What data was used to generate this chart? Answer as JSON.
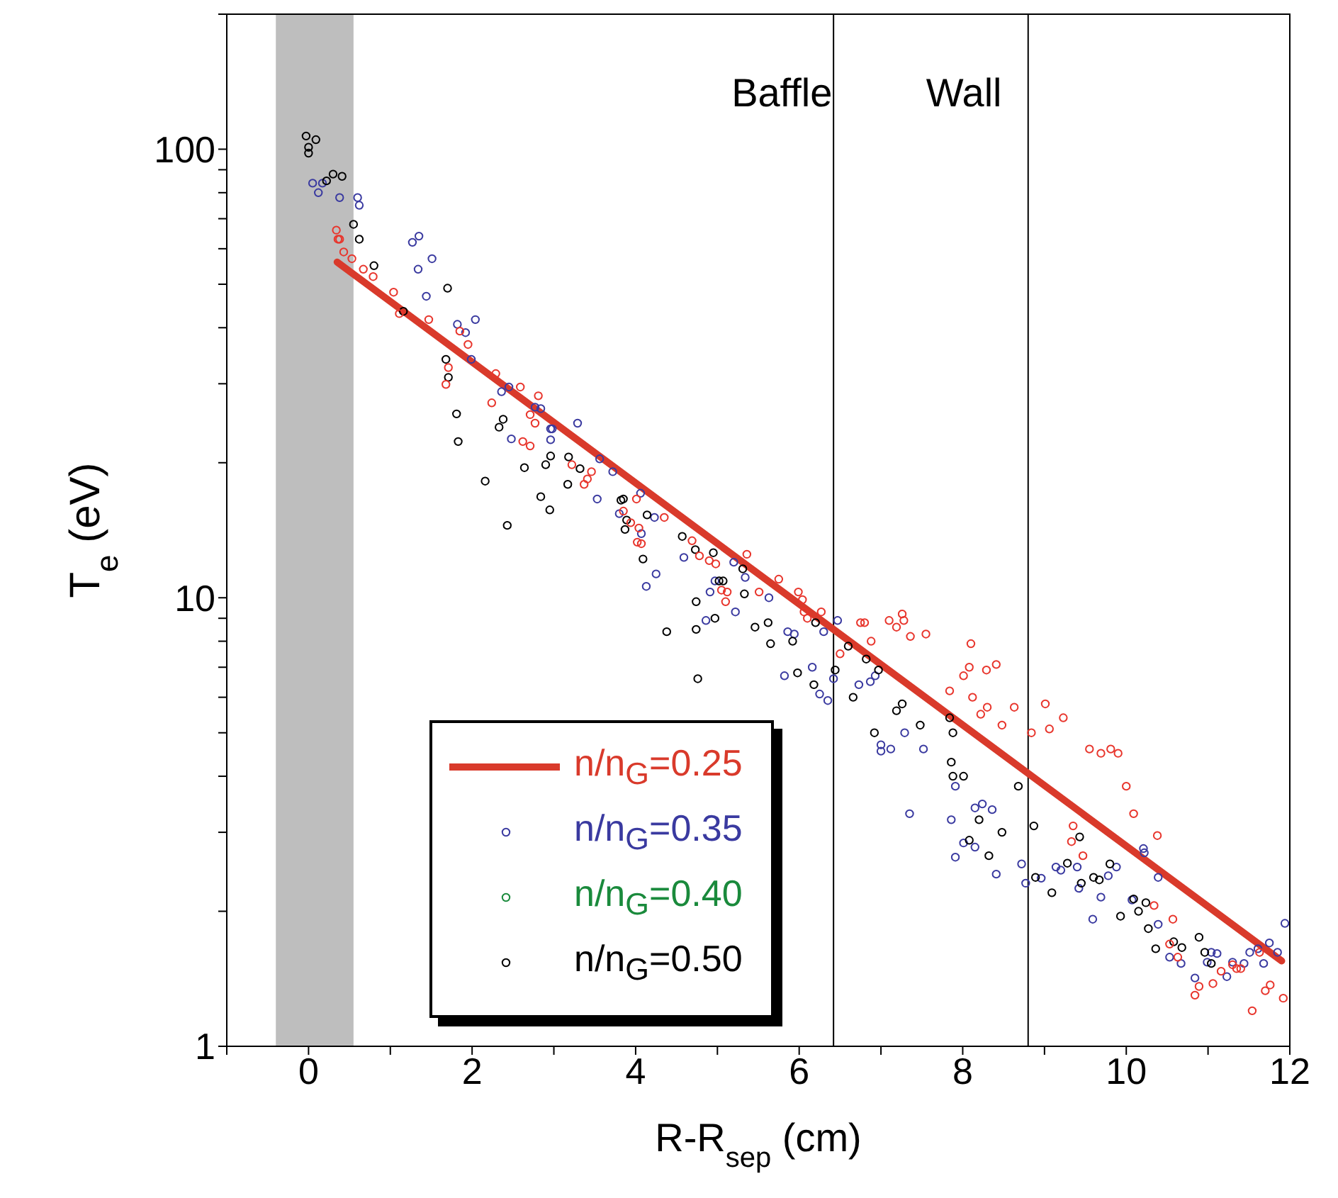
{
  "chart_data": {
    "type": "scatter",
    "xlabel": "R-R$_{sep}$ (cm)",
    "ylabel": "T$_{e}$ (eV)",
    "log": "y",
    "xlim": [
      -1,
      12
    ],
    "ylim": [
      1,
      200
    ],
    "xticks": [
      {
        "value": -1,
        "label": null
      },
      0,
      {
        "value": 1,
        "label": null
      },
      2,
      {
        "value": 3,
        "label": null
      },
      4,
      {
        "value": 5,
        "label": null
      },
      6,
      {
        "value": 7,
        "label": null
      },
      8,
      {
        "value": 9,
        "label": null
      },
      10,
      {
        "value": 11,
        "label": null
      },
      12
    ],
    "yticks": [
      1,
      {
        "value": 2,
        "label": null
      },
      {
        "value": 3,
        "label": null
      },
      {
        "value": 4,
        "label": null
      },
      {
        "value": 5,
        "label": null
      },
      {
        "value": 6,
        "label": null
      },
      {
        "value": 7,
        "label": null
      },
      {
        "value": 8,
        "label": null
      },
      {
        "value": 9,
        "label": null
      },
      10,
      {
        "value": 20,
        "label": null
      },
      {
        "value": 30,
        "label": null
      },
      {
        "value": 40,
        "label": null
      },
      {
        "value": 50,
        "label": null
      },
      {
        "value": 60,
        "label": null
      },
      {
        "value": 70,
        "label": null
      },
      {
        "value": 80,
        "label": null
      },
      {
        "value": 90,
        "label": null
      },
      100,
      {
        "value": 200,
        "label": null
      }
    ],
    "legend": "bottom left",
    "marker": "circle",
    "bands": [
      {
        "axis": "x",
        "from": -0.4,
        "to": 0.55,
        "color": "#bebebe"
      }
    ],
    "ref_lines": [
      {
        "axis": "x",
        "value": 6.42,
        "label": "Baffle",
        "color": "#000000"
      },
      {
        "axis": "x",
        "value": 8.8,
        "label": "Wall",
        "color": "#000000"
      }
    ],
    "series": [
      {
        "name": "n/n$_{G}$=0.25",
        "type": "line",
        "marker": "none",
        "color": "#d93a2b",
        "x": [
          0.35,
          11.9
        ],
        "values": [
          56,
          1.55
        ]
      },
      {
        "name": "n/n$_{G}$=0.35",
        "color": "#3a3aa0",
        "x": [
          0.05,
          0.12,
          0.17,
          0.38,
          0.6,
          0.62,
          1.27,
          1.35,
          1.34,
          1.51,
          1.44,
          1.82,
          1.92,
          2.04,
          1.99,
          2.36,
          2.45,
          2.48,
          2.77,
          2.84,
          2.96,
          2.96,
          3.29,
          2.98,
          3.56,
          3.72,
          3.53,
          4.06,
          3.8,
          4.23,
          4.07,
          4.25,
          4.13,
          4.59,
          4.91,
          4.97,
          4.86,
          5.22,
          5.2,
          5.34,
          5.63,
          5.86,
          5.94,
          5.82,
          6.16,
          6.25,
          6.35,
          6.42,
          6.47,
          6.3,
          6.73,
          6.87,
          6.93,
          7.0,
          7.0,
          7.12,
          7.29,
          7.52,
          7.35,
          7.86,
          7.91,
          8.15,
          8.24,
          8.36,
          8.01,
          8.15,
          7.91,
          8.41,
          8.72,
          8.77,
          8.96,
          9.2,
          9.14,
          9.4,
          9.42,
          9.59,
          9.69,
          9.78,
          9.88,
          10.07,
          10.21,
          10.22,
          10.39,
          10.39,
          10.53,
          10.67,
          10.84,
          10.99,
          11.04,
          11.11,
          11.23,
          11.3,
          11.44,
          11.51,
          11.61,
          11.68,
          11.75,
          11.85,
          11.94
        ],
        "values": [
          84,
          80,
          84,
          78,
          78,
          75,
          62,
          64,
          54,
          57,
          47,
          40.7,
          39,
          41.7,
          34,
          28.8,
          29.5,
          22.6,
          26.6,
          26.4,
          23.8,
          22.5,
          24.5,
          23.8,
          20.4,
          19.1,
          16.6,
          17.1,
          15.4,
          15.1,
          13.9,
          11.3,
          10.6,
          12.3,
          10.3,
          10.9,
          8.9,
          9.3,
          12,
          11.1,
          10,
          8.4,
          8.3,
          6.7,
          7,
          6.1,
          5.9,
          6.6,
          8.9,
          8.4,
          6.4,
          6.5,
          6.7,
          4.7,
          4.55,
          4.6,
          5,
          4.6,
          3.3,
          3.2,
          3.8,
          3.4,
          3.47,
          3.37,
          2.84,
          2.78,
          2.64,
          2.42,
          2.55,
          2.31,
          2.37,
          2.47,
          2.51,
          2.51,
          2.25,
          1.92,
          2.15,
          2.4,
          2.51,
          2.12,
          2.76,
          2.7,
          2.38,
          1.87,
          1.58,
          1.53,
          1.42,
          1.54,
          1.62,
          1.61,
          1.43,
          1.54,
          1.53,
          1.62,
          1.65,
          1.53,
          1.7,
          1.62,
          1.88
        ]
      },
      {
        "name": "n/n$_{G}$=0.40",
        "color": "#1a8a3c"
      },
      {
        "name": "n/n$_{G}$=0.50",
        "color": "#000000",
        "x": [
          -0.03,
          0.09,
          0,
          0,
          0.3,
          0.41,
          0.22,
          0.55,
          0.62,
          0.8,
          1.16,
          1.7,
          1.68,
          1.71,
          1.81,
          1.83,
          2.16,
          2.43,
          2.38,
          2.33,
          2.64,
          2.84,
          2.95,
          2.96,
          2.9,
          3.18,
          3.32,
          3.17,
          3.82,
          3.85,
          3.89,
          3.87,
          4.14,
          4.09,
          4.38,
          4.57,
          4.73,
          4.95,
          5.02,
          5.07,
          4.74,
          4.74,
          4.97,
          4.76,
          5.31,
          5.33,
          5.46,
          5.62,
          5.65,
          5.92,
          5.98,
          6.2,
          6.18,
          6.44,
          6.6,
          6.82,
          6.97,
          6.66,
          7.19,
          7.26,
          6.92,
          7.48,
          7.84,
          7.88,
          7.86,
          7.88,
          8.01,
          8.2,
          8.08,
          8.32,
          8.48,
          8.68,
          8.87,
          8.89,
          9.09,
          9.43,
          9.45,
          9.28,
          9.6,
          9.67,
          9.8,
          9.93,
          10.09,
          10.15,
          10.24,
          10.27,
          10.36,
          10.58,
          10.68,
          10.89,
          10.96,
          11.04
        ],
        "values": [
          107,
          105,
          101,
          98,
          88,
          87,
          85,
          68,
          63,
          55,
          43.5,
          49,
          34,
          31,
          25.7,
          22.3,
          18.2,
          14.5,
          25,
          24,
          19.5,
          16.8,
          15.7,
          20.7,
          19.8,
          20.6,
          19.4,
          17.9,
          16.5,
          16.6,
          14.9,
          14.2,
          15.3,
          12.2,
          8.4,
          13.7,
          12.8,
          12.6,
          10.9,
          10.9,
          9.8,
          8.5,
          9,
          6.6,
          11.6,
          10.2,
          8.6,
          8.8,
          7.9,
          8,
          6.8,
          8.8,
          6.4,
          6.9,
          7.8,
          7.3,
          6.9,
          6,
          5.6,
          5.8,
          5,
          5.2,
          5.4,
          5,
          4.3,
          4,
          4,
          3.2,
          2.88,
          2.66,
          3,
          3.8,
          3.1,
          2.38,
          2.2,
          2.93,
          2.31,
          2.56,
          2.38,
          2.35,
          2.55,
          1.95,
          2.13,
          2,
          2.09,
          1.83,
          1.65,
          1.71,
          1.66,
          1.75,
          1.62,
          1.53
        ]
      },
      {
        "color": "#e8352c",
        "x": [
          0.34,
          0.36,
          0.38,
          0.43,
          0.53,
          0.67,
          0.79,
          1.04,
          1.11,
          1.47,
          1.85,
          1.95,
          1.71,
          1.68,
          2.24,
          2.29,
          2.59,
          2.81,
          2.71,
          2.77,
          2.62,
          2.71,
          3.22,
          3.46,
          3.41,
          3.37,
          3.85,
          4.01,
          3.94,
          4.04,
          4.02,
          4.07,
          4.35,
          4.69,
          4.78,
          4.9,
          4.98,
          5.05,
          5.12,
          5.1,
          5.36,
          5.51,
          5.75,
          5.99,
          6.04,
          6.1,
          6.06,
          6.27,
          6.5,
          6.75,
          6.8,
          6.88,
          7.1,
          7.19,
          7.26,
          7.28,
          7.36,
          7.55,
          8.1,
          8.01,
          8.08,
          8.29,
          8.41,
          7.84,
          8.12,
          8.3,
          8.22,
          8.48,
          8.63,
          8.84,
          9.01,
          9.06,
          9.23,
          9.55,
          9.69,
          9.81,
          9.9,
          10.0,
          10.09,
          10.38,
          9.35,
          9.33,
          9.47,
          10.34,
          10.57,
          10.53,
          10.63,
          10.89,
          10.84,
          11.06,
          11.16,
          11.3,
          11.35,
          11.4,
          11.54,
          11.63,
          11.7,
          11.76,
          11.92
        ],
        "values": [
          66,
          63,
          63,
          59,
          57,
          54,
          52,
          48,
          43,
          41.7,
          39.3,
          36.7,
          32.6,
          29.9,
          27.2,
          31.6,
          29.5,
          28.2,
          25.6,
          24.5,
          22.3,
          21.8,
          19.8,
          19.1,
          18.4,
          17.9,
          15.6,
          16.6,
          14.7,
          14.3,
          13.3,
          13.2,
          15.1,
          13.4,
          12.4,
          12.1,
          11.9,
          10.4,
          10.3,
          9.8,
          12.5,
          10.3,
          11,
          10.3,
          9.9,
          9,
          9.3,
          9.3,
          7.5,
          8.8,
          8.8,
          8,
          8.9,
          8.6,
          9.2,
          8.9,
          8.2,
          8.3,
          7.9,
          6.7,
          7,
          6.9,
          7.1,
          6.2,
          6,
          5.7,
          5.5,
          5.2,
          5.7,
          5,
          5.8,
          5.1,
          5.4,
          4.6,
          4.5,
          4.6,
          4.5,
          3.8,
          3.3,
          2.95,
          3.1,
          2.86,
          2.66,
          2.06,
          1.92,
          1.69,
          1.58,
          1.36,
          1.3,
          1.38,
          1.47,
          1.52,
          1.49,
          1.49,
          1.2,
          1.62,
          1.33,
          1.37,
          1.28
        ]
      }
    ]
  }
}
